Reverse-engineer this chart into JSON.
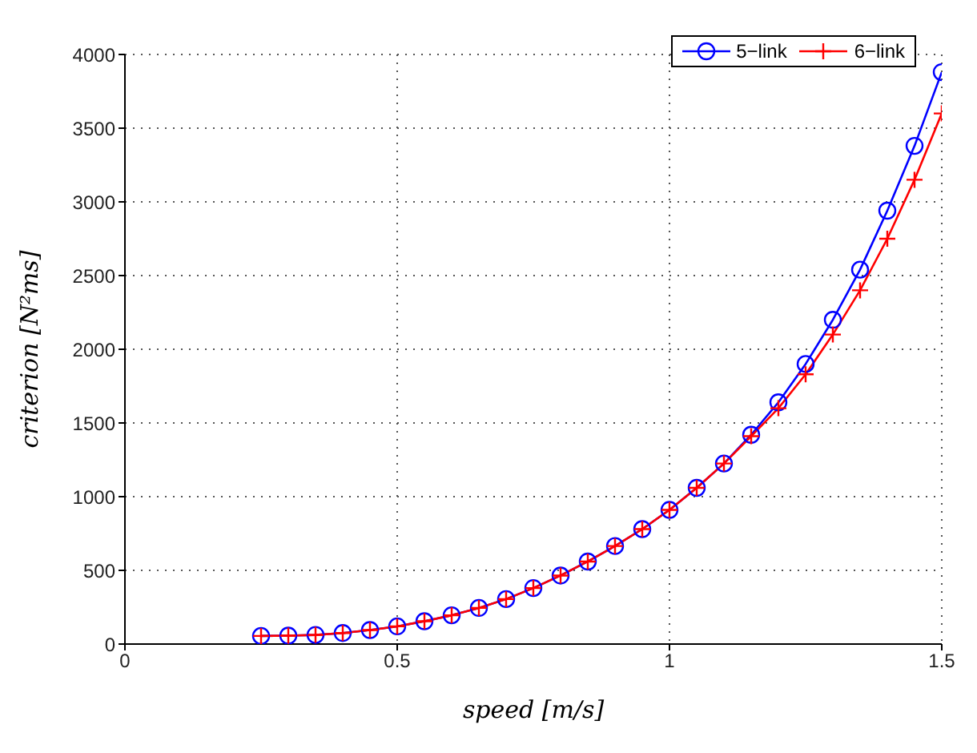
{
  "chart_data": {
    "type": "line",
    "xlabel": "speed [m/s]",
    "ylabel": "criterion [N²ms]",
    "x": [
      0.25,
      0.3,
      0.35,
      0.4,
      0.45,
      0.5,
      0.55,
      0.6,
      0.65,
      0.7,
      0.75,
      0.8,
      0.85,
      0.9,
      0.95,
      1.0,
      1.05,
      1.1,
      1.15,
      1.2,
      1.25,
      1.3,
      1.35,
      1.4,
      1.45,
      1.5
    ],
    "series": [
      {
        "name": "5−link",
        "color": "#0000ff",
        "marker": "circle",
        "values": [
          55,
          57,
          62,
          75,
          95,
          120,
          155,
          195,
          245,
          305,
          380,
          465,
          560,
          665,
          780,
          910,
          1060,
          1225,
          1420,
          1640,
          1900,
          2200,
          2540,
          2940,
          3380,
          3880
        ]
      },
      {
        "name": "6−link",
        "color": "#ff0000",
        "marker": "cross",
        "values": [
          55,
          57,
          62,
          75,
          95,
          120,
          155,
          195,
          245,
          305,
          380,
          465,
          560,
          665,
          780,
          910,
          1060,
          1225,
          1410,
          1600,
          1830,
          2100,
          2400,
          2750,
          3150,
          3600
        ]
      }
    ],
    "xlim": [
      0,
      1.5
    ],
    "xticks": [
      0,
      0.5,
      1,
      1.5
    ],
    "ylim": [
      0,
      4000
    ],
    "yticks": [
      0,
      500,
      1000,
      1500,
      2000,
      2500,
      3000,
      3500,
      4000
    ],
    "grid": true,
    "legend": "top right",
    "line_style": "solid"
  }
}
